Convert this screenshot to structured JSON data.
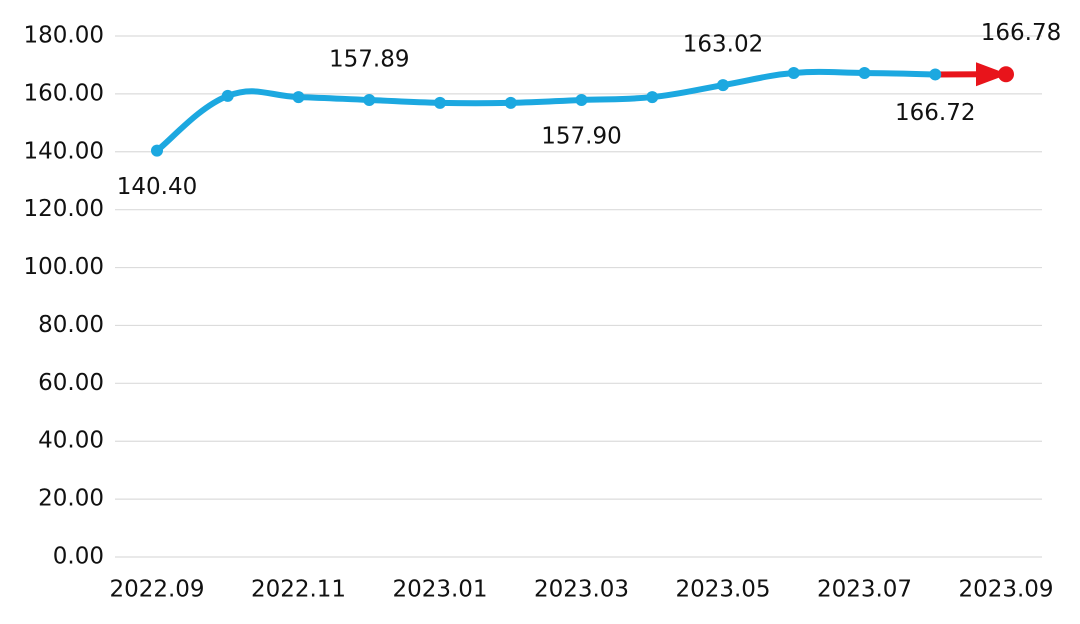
{
  "chart_data": {
    "type": "line",
    "categories": [
      "2022.09",
      null,
      "2022.11",
      null,
      "2023.01",
      null,
      "2023.03",
      null,
      "2023.05",
      null,
      "2023.07",
      null,
      "2023.09"
    ],
    "values": [
      140.4,
      159.3,
      158.9,
      157.89,
      156.9,
      156.9,
      157.9,
      158.9,
      163.02,
      167.2,
      167.2,
      166.72,
      166.78
    ],
    "value_labels": [
      "140.40",
      null,
      null,
      "157.89",
      null,
      null,
      "157.90",
      null,
      "163.02",
      null,
      null,
      "166.72",
      "166.78"
    ],
    "color": "#1ca8e0",
    "highlight_color": "#e8141b",
    "ylim": [
      0,
      180
    ],
    "yticks": [
      {
        "value": 0,
        "label": "0.00"
      },
      {
        "value": 20,
        "label": "20.00"
      },
      {
        "value": 40,
        "label": "40.00"
      },
      {
        "value": 60,
        "label": "60.00"
      },
      {
        "value": 80,
        "label": "80.00"
      },
      {
        "value": 100,
        "label": "100.00"
      },
      {
        "value": 120,
        "label": "120.00"
      },
      {
        "value": 140,
        "label": "140.00"
      },
      {
        "value": 160,
        "label": "160.00"
      },
      {
        "value": 180,
        "label": "180.00"
      }
    ],
    "grid": true
  }
}
